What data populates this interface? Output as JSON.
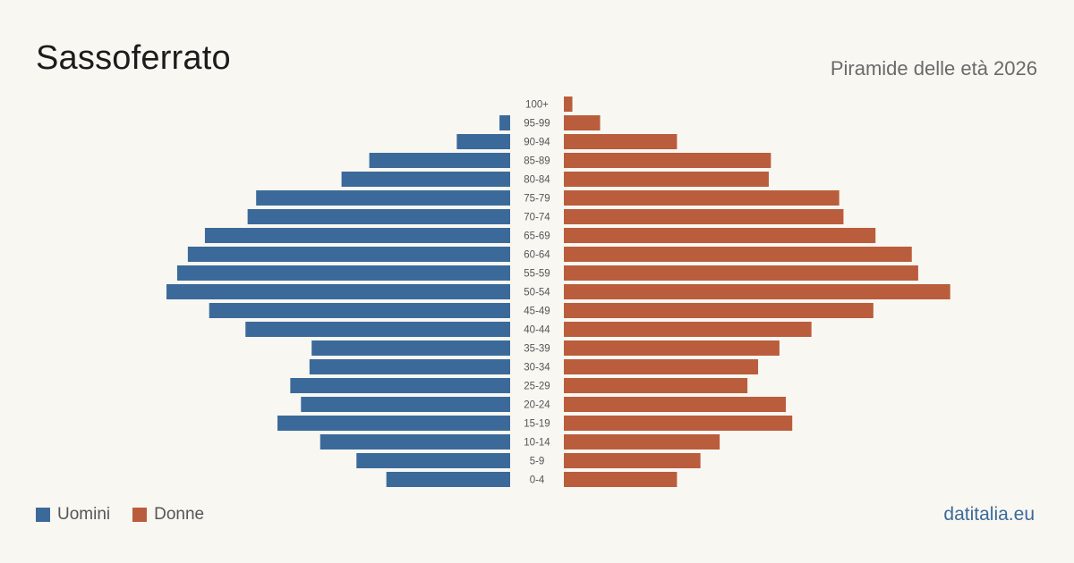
{
  "header": {
    "title": "Sassoferrato",
    "subtitle": "Piramide delle età 2026"
  },
  "legend": {
    "men_label": "Uomini",
    "women_label": "Donne"
  },
  "brand": "datitalia.eu",
  "colors": {
    "men": "#3b6a9a",
    "women": "#ba5d3c",
    "background": "#f9f7f2"
  },
  "chart_data": {
    "type": "bar",
    "orientation": "horizontal-pyramid",
    "categories": [
      "100+",
      "95-99",
      "90-94",
      "85-89",
      "80-84",
      "75-79",
      "70-74",
      "65-69",
      "60-64",
      "55-59",
      "50-54",
      "45-49",
      "40-44",
      "35-39",
      "30-34",
      "25-29",
      "20-24",
      "15-19",
      "10-14",
      "5-9",
      "0-4"
    ],
    "series": [
      {
        "name": "Uomini",
        "values": [
          0,
          5,
          25,
          66,
          79,
          119,
          123,
          143,
          151,
          156,
          161,
          141,
          124,
          93,
          94,
          103,
          98,
          109,
          89,
          72,
          58
        ]
      },
      {
        "name": "Donne",
        "values": [
          4,
          17,
          53,
          97,
          96,
          129,
          131,
          146,
          163,
          166,
          181,
          145,
          116,
          101,
          91,
          86,
          104,
          107,
          73,
          64,
          53
        ]
      }
    ],
    "xlabel": "",
    "ylabel": "",
    "grid": false
  }
}
